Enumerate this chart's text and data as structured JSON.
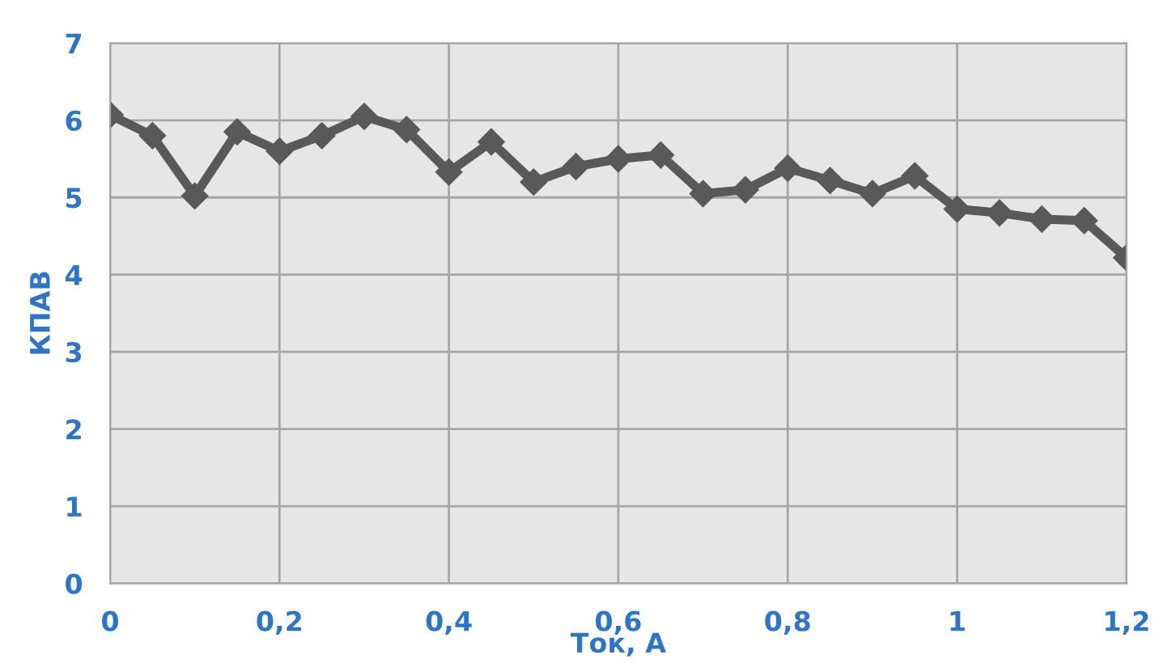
{
  "chart_data": {
    "type": "line",
    "xlabel": "Ток, А",
    "ylabel": "КПАВ",
    "x": [
      0,
      0.05,
      0.1,
      0.15,
      0.2,
      0.25,
      0.3,
      0.35,
      0.4,
      0.45,
      0.5,
      0.55,
      0.6,
      0.65,
      0.7,
      0.75,
      0.8,
      0.85,
      0.9,
      0.95,
      1,
      1.05,
      1.1,
      1.15,
      1.2
    ],
    "series": [
      {
        "color": "#595959",
        "values": [
          6.07,
          5.8,
          5.02,
          5.85,
          5.6,
          5.8,
          6.05,
          5.88,
          5.33,
          5.72,
          5.2,
          5.4,
          5.5,
          5.55,
          5.05,
          5.1,
          5.38,
          5.22,
          5.05,
          5.28,
          4.85,
          4.8,
          4.72,
          4.7,
          4.22
        ]
      }
    ],
    "xlim": [
      0,
      1.2
    ],
    "xticks": [
      0,
      {
        "value": 0.2,
        "label": "0,2"
      },
      {
        "value": 0.4,
        "label": "0,4"
      },
      {
        "value": 0.6,
        "label": "0,6"
      },
      {
        "value": 0.8,
        "label": "0,8"
      },
      1,
      {
        "value": 1.2,
        "label": "1,2"
      }
    ],
    "ylim": [
      0,
      7
    ],
    "yticks": [
      0,
      1,
      2,
      3,
      4,
      5,
      6,
      7
    ],
    "grid": true,
    "marker": "diamond",
    "line_style": "solid",
    "legend": false
  }
}
